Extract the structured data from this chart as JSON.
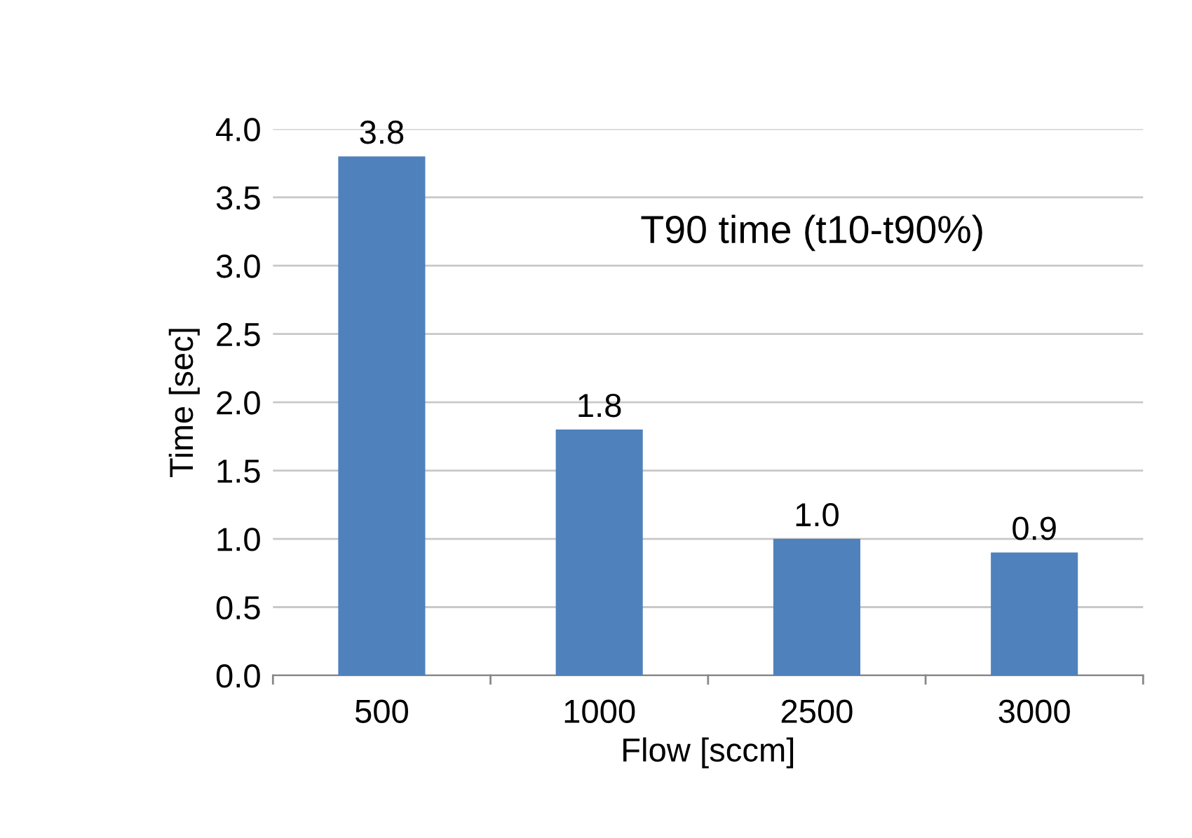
{
  "chart_data": {
    "type": "bar",
    "xlabel": "Flow [sccm]",
    "ylabel": "Time [sec]",
    "annotations": [
      "T90 time (t10-t90%)"
    ],
    "categories": [
      "500",
      "1000",
      "2500",
      "3000"
    ],
    "values": [
      3.8,
      1.8,
      1.0,
      0.9
    ],
    "color": "#4f81bd",
    "value_labels": [
      "3.8",
      "1.8",
      "1.0",
      "0.9"
    ],
    "ylim": [
      0,
      4
    ],
    "yticks": [
      {
        "value": 0,
        "label": "0.0"
      },
      {
        "value": 0.5,
        "label": "0.5"
      },
      {
        "value": 1,
        "label": "1.0"
      },
      {
        "value": 1.5,
        "label": "1.5"
      },
      {
        "value": 2,
        "label": "2.0"
      },
      {
        "value": 2.5,
        "label": "2.5"
      },
      {
        "value": 3,
        "label": "3.0"
      },
      {
        "value": 3.5,
        "label": "3.5"
      },
      {
        "value": 4,
        "label": "4.0"
      }
    ],
    "grid": "y"
  }
}
